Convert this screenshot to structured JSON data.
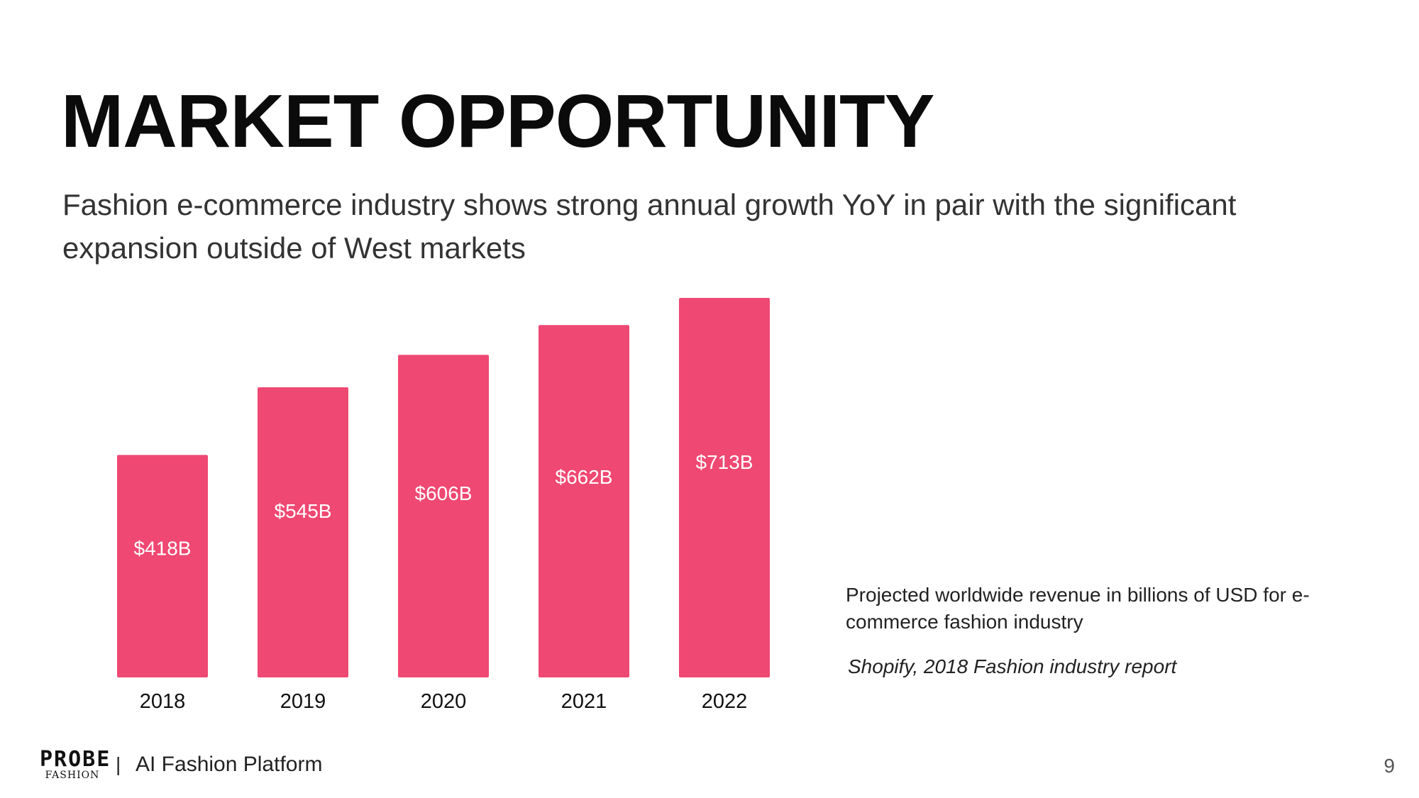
{
  "slide": {
    "title": "MARKET OPPORTUNITY",
    "subtitle": "Fashion e-commerce industry shows strong annual growth YoY in pair with the significant expansion outside of West markets",
    "caption": "Projected worldwide revenue in billions of USD for e-commerce fashion industry",
    "source": "Shopify, 2018 Fashion industry report",
    "page_number": "9"
  },
  "footer": {
    "logo_main": "PROBE",
    "logo_sub": "FASHION",
    "separator": "|",
    "tagline": "AI Fashion Platform"
  },
  "chart_data": {
    "type": "bar",
    "categories": [
      "2018",
      "2019",
      "2020",
      "2021",
      "2022"
    ],
    "values": [
      418,
      545,
      606,
      662,
      713
    ],
    "value_labels": [
      "$418B",
      "$545B",
      "$606B",
      "$662B",
      "$713B"
    ],
    "title": "",
    "xlabel": "",
    "ylabel": "",
    "unit": "B USD",
    "ylim": [
      0,
      713
    ],
    "grid": false,
    "legend": "none",
    "bar_color": "#ef4872"
  }
}
